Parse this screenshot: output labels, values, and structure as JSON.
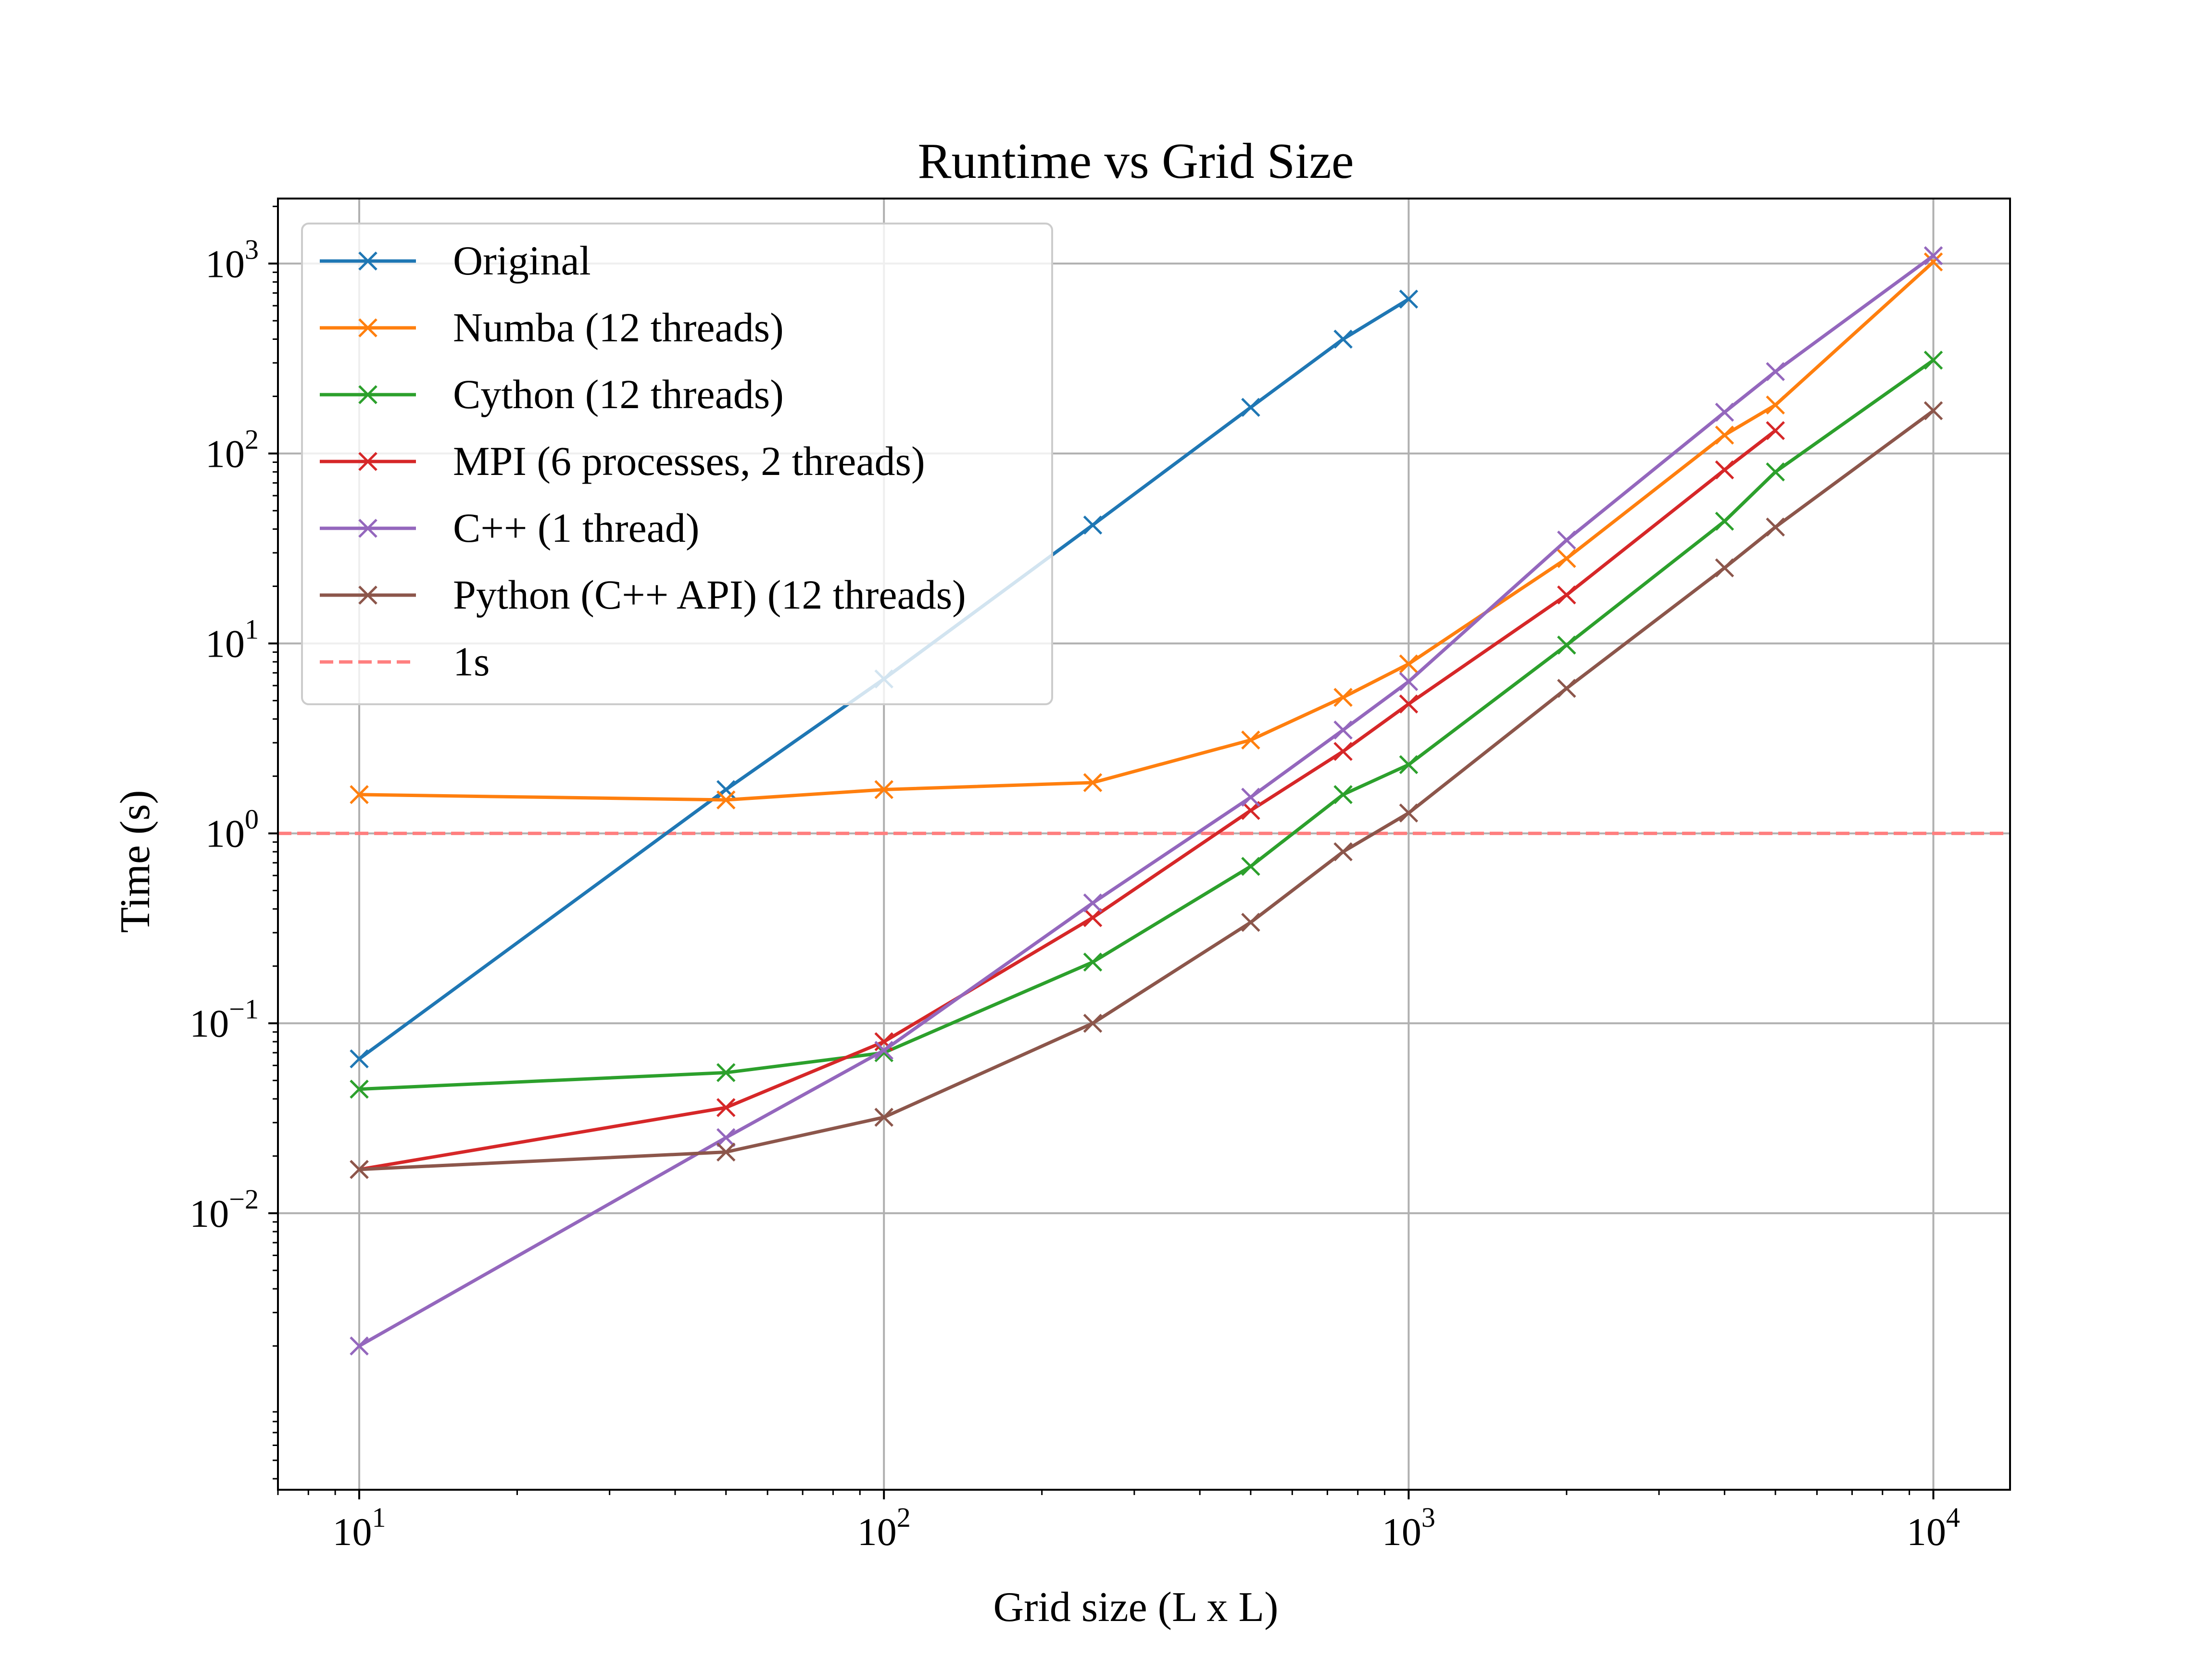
{
  "chart_data": {
    "type": "line",
    "title": "Runtime vs Grid Size",
    "xlabel": "Grid size (L x L)",
    "ylabel": "Time (s)",
    "xscale": "log",
    "yscale": "log",
    "xlim": [
      7,
      14000
    ],
    "ylim": [
      0.00035,
      2200
    ],
    "grid": true,
    "legend_position": "upper-left",
    "x_ticks": [
      {
        "value": 10,
        "base": "10",
        "exp": "1"
      },
      {
        "value": 100,
        "base": "10",
        "exp": "2"
      },
      {
        "value": 1000,
        "base": "10",
        "exp": "3"
      },
      {
        "value": 10000,
        "base": "10",
        "exp": "4"
      }
    ],
    "y_ticks": [
      {
        "value": 0.01,
        "base": "10",
        "exp": "−2"
      },
      {
        "value": 0.1,
        "base": "10",
        "exp": "−1"
      },
      {
        "value": 1,
        "base": "10",
        "exp": "0"
      },
      {
        "value": 10,
        "base": "10",
        "exp": "1"
      },
      {
        "value": 100,
        "base": "10",
        "exp": "2"
      },
      {
        "value": 1000,
        "base": "10",
        "exp": "3"
      }
    ],
    "series": [
      {
        "name": "Original",
        "color": "#1f77b4",
        "x": [
          10,
          50,
          100,
          250,
          500,
          750,
          1000
        ],
        "y": [
          0.065,
          1.7,
          6.5,
          42,
          175,
          400,
          650
        ]
      },
      {
        "name": "Numba (12 threads)",
        "color": "#ff7f0e",
        "x": [
          10,
          50,
          100,
          250,
          500,
          750,
          1000,
          2000,
          4000,
          5000,
          10000
        ],
        "y": [
          1.6,
          1.5,
          1.7,
          1.85,
          3.1,
          5.2,
          7.8,
          28,
          125,
          180,
          1020
        ]
      },
      {
        "name": "Cython (12 threads)",
        "color": "#2ca02c",
        "x": [
          10,
          50,
          100,
          250,
          500,
          750,
          1000,
          2000,
          4000,
          5000,
          10000
        ],
        "y": [
          0.045,
          0.055,
          0.07,
          0.21,
          0.67,
          1.6,
          2.3,
          9.8,
          44,
          80,
          310
        ]
      },
      {
        "name": "MPI (6 processes, 2 threads)",
        "color": "#d62728",
        "x": [
          10,
          50,
          100,
          250,
          500,
          750,
          1000,
          2000,
          4000,
          5000
        ],
        "y": [
          0.017,
          0.036,
          0.08,
          0.36,
          1.32,
          2.7,
          4.8,
          18,
          82,
          132
        ]
      },
      {
        "name": "C++ (1 thread)",
        "color": "#9467bd",
        "x": [
          10,
          50,
          100,
          250,
          500,
          750,
          1000,
          2000,
          4000,
          5000,
          10000
        ],
        "y": [
          0.002,
          0.025,
          0.072,
          0.43,
          1.55,
          3.5,
          6.3,
          35,
          165,
          270,
          1100
        ]
      },
      {
        "name": "Python (C++ API) (12 threads)",
        "color": "#8c564b",
        "x": [
          10,
          50,
          100,
          250,
          500,
          750,
          1000,
          2000,
          4000,
          5000,
          10000
        ],
        "y": [
          0.017,
          0.021,
          0.032,
          0.1,
          0.34,
          0.8,
          1.28,
          5.8,
          25,
          41,
          168
        ]
      }
    ],
    "reference_line": {
      "name": "1s",
      "y": 1,
      "color": "#ff7f7f"
    }
  }
}
